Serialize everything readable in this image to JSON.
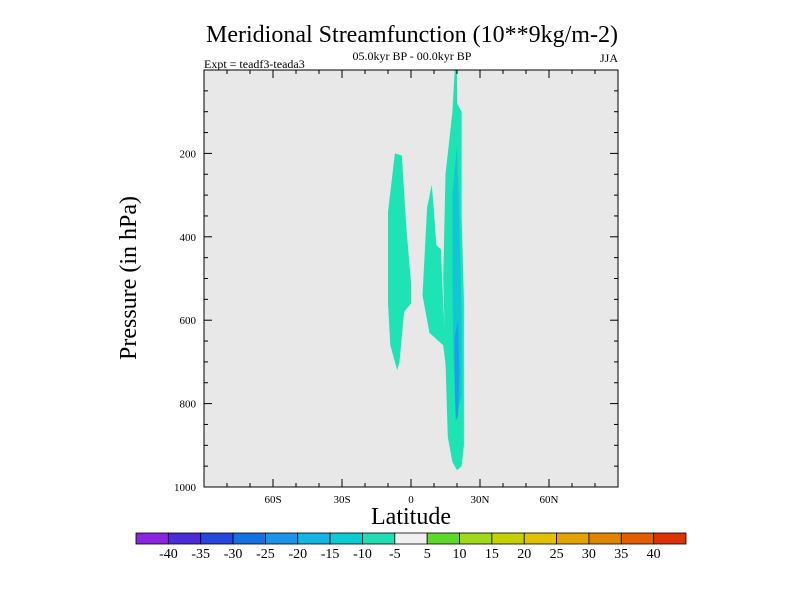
{
  "chart_data": {
    "type": "contour",
    "title": "Meridional Streamfunction (10**9kg/m-2)",
    "subtitle": "05.0kyr BP - 00.0kyr BP",
    "left_label": "Expt = teadf3-teada3",
    "right_label": "JJA",
    "xlabel": "Latitude",
    "ylabel": "Pressure (in hPa)",
    "xlim": [
      -90,
      90
    ],
    "ylim": [
      0,
      1000
    ],
    "y_reversed": true,
    "x_ticks": [
      {
        "value": -60,
        "label": "60S"
      },
      {
        "value": -30,
        "label": "30S"
      },
      {
        "value": 0,
        "label": "0"
      },
      {
        "value": 30,
        "label": "30N"
      },
      {
        "value": 60,
        "label": "60N"
      }
    ],
    "y_ticks": [
      {
        "value": 200,
        "label": "200"
      },
      {
        "value": 400,
        "label": "400"
      },
      {
        "value": 600,
        "label": "600"
      },
      {
        "value": 800,
        "label": "800"
      },
      {
        "value": 1000,
        "label": "1000"
      }
    ],
    "background_color": "#e8e8e8",
    "regions": [
      {
        "name": "southern-cell",
        "level": "-10 to -5",
        "color": "#1ee3b4",
        "points": [
          [
            -10,
            340
          ],
          [
            -7,
            200
          ],
          [
            -4,
            205
          ],
          [
            -2,
            380
          ],
          [
            0,
            510
          ],
          [
            0,
            560
          ],
          [
            -3,
            580
          ],
          [
            -5,
            700
          ],
          [
            -6,
            720
          ],
          [
            -9,
            660
          ],
          [
            -10,
            560
          ]
        ]
      },
      {
        "name": "northern-cell-inner",
        "level": "-10 to -5",
        "color": "#1ee3b4",
        "points": [
          [
            5,
            540
          ],
          [
            7,
            330
          ],
          [
            9,
            275
          ],
          [
            10,
            340
          ],
          [
            11,
            420
          ],
          [
            13,
            430
          ],
          [
            14,
            560
          ],
          [
            15,
            650
          ],
          [
            16,
            750
          ],
          [
            14,
            660
          ],
          [
            12,
            650
          ],
          [
            8,
            630
          ]
        ]
      },
      {
        "name": "northern-cell-main",
        "level": "-10 to -5",
        "color": "#1ee3b4",
        "points": [
          [
            15,
            250
          ],
          [
            17,
            150
          ],
          [
            18,
            100
          ],
          [
            19,
            0
          ],
          [
            20,
            0
          ],
          [
            20,
            80
          ],
          [
            22,
            100
          ],
          [
            22,
            350
          ],
          [
            23,
            550
          ],
          [
            23,
            700
          ],
          [
            23,
            900
          ],
          [
            22,
            950
          ],
          [
            20,
            960
          ],
          [
            18,
            940
          ],
          [
            16,
            880
          ],
          [
            15,
            700
          ],
          [
            14,
            500
          ]
        ]
      },
      {
        "name": "northern-core-1",
        "level": "-15 to -10",
        "color": "#0fc8d3",
        "points": [
          [
            18,
            300
          ],
          [
            20,
            180
          ],
          [
            21,
            350
          ],
          [
            22,
            600
          ],
          [
            22,
            780
          ],
          [
            20,
            830
          ],
          [
            18.5,
            700
          ],
          [
            18,
            500
          ]
        ]
      },
      {
        "name": "northern-core-2",
        "level": "-20 to -15",
        "color": "#1aa0e8",
        "points": [
          [
            19,
            640
          ],
          [
            20.5,
            600
          ],
          [
            21,
            720
          ],
          [
            20.5,
            830
          ],
          [
            19.5,
            840
          ],
          [
            19,
            760
          ]
        ]
      }
    ],
    "colorbar": {
      "labels": [
        "-40",
        "-35",
        "-30",
        "-25",
        "-20",
        "-15",
        "-10",
        "-5",
        "5",
        "10",
        "15",
        "20",
        "25",
        "30",
        "35",
        "40"
      ],
      "colors": [
        "#8a24e2",
        "#4b2bd9",
        "#2747e3",
        "#1570e4",
        "#1a93e8",
        "#12b5e6",
        "#0bcbd3",
        "#1fdeb2",
        "#f0f0f0",
        "#5ed92a",
        "#a0d81a",
        "#c4d300",
        "#e2c100",
        "#e4a300",
        "#e08500",
        "#e45e00",
        "#de3300"
      ]
    }
  }
}
